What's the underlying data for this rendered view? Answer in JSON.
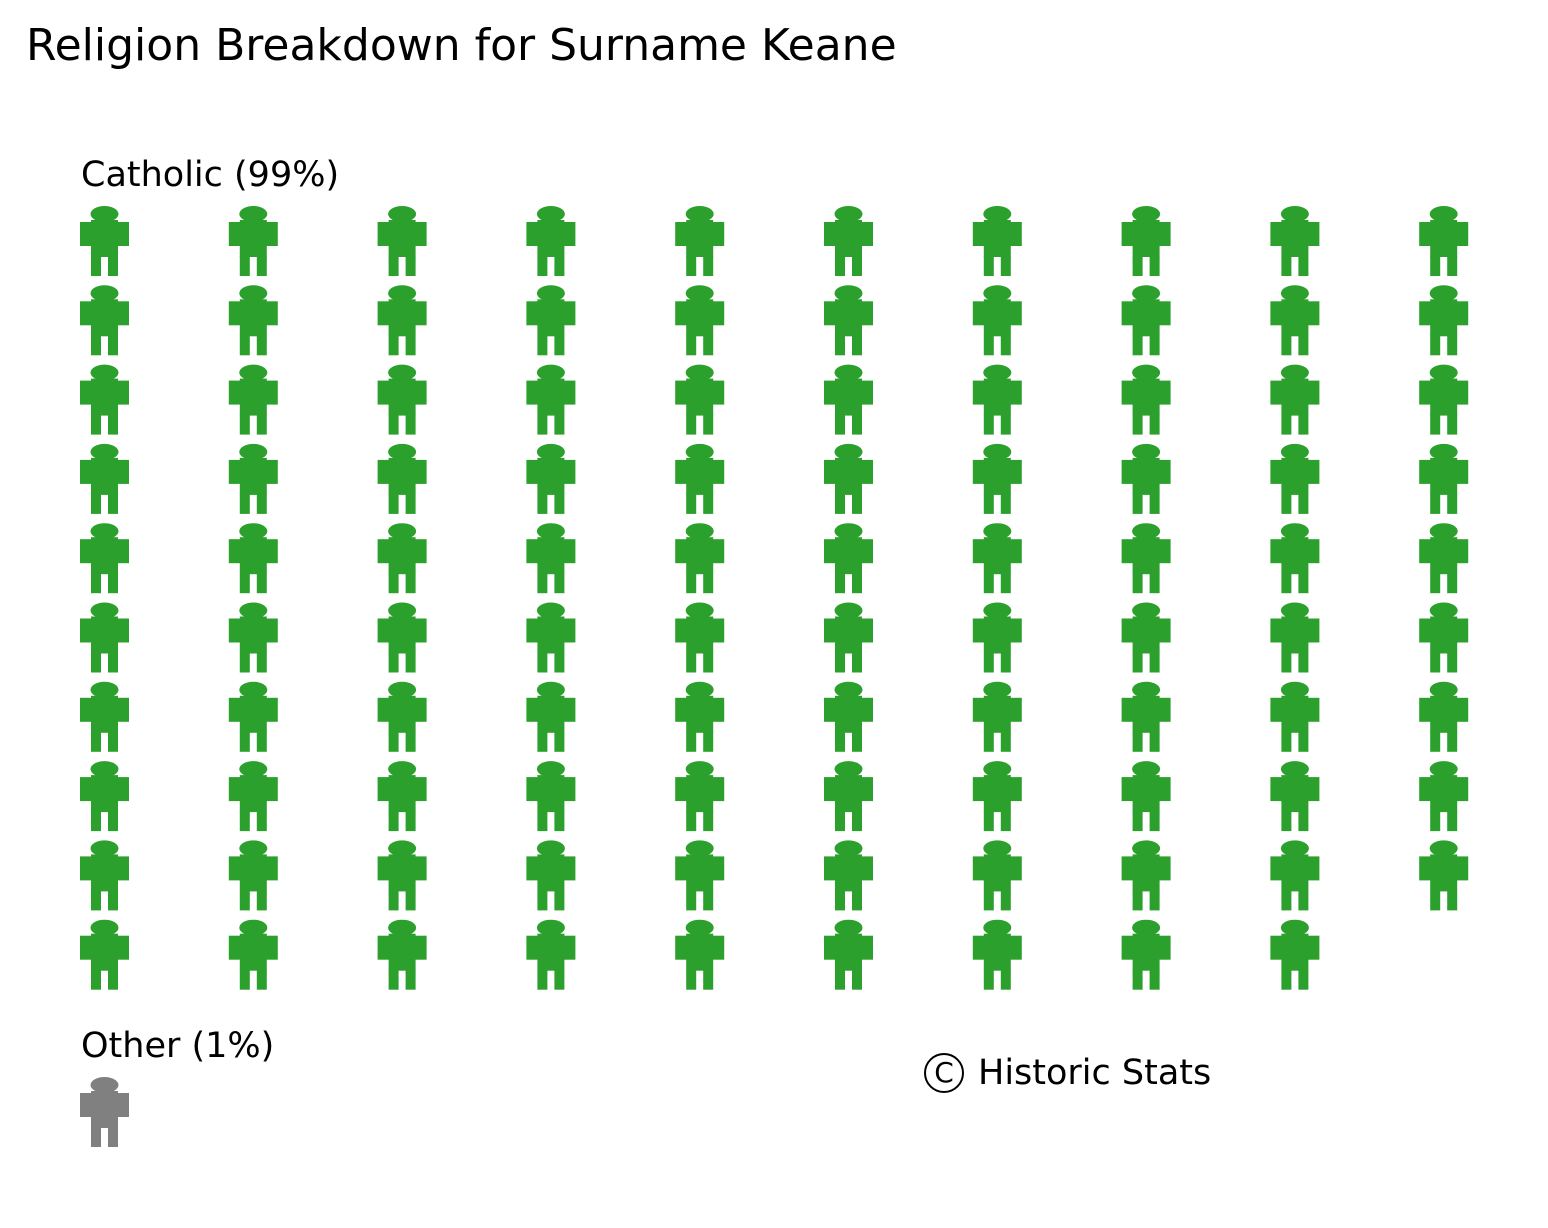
{
  "title": "Religion Breakdown for Surname Keane",
  "copyright": {
    "symbol": "C",
    "text": "Historic Stats"
  },
  "chart_data": {
    "type": "pictogram",
    "title": "Religion Breakdown for Surname Keane",
    "icon": "person-icon",
    "units_per_icon_percent": 1,
    "groups": [
      {
        "name": "Catholic",
        "label": "Catholic (99%)",
        "percent": 99,
        "icon_count": 99,
        "color": "#2ca02c"
      },
      {
        "name": "Other",
        "label": "Other (1%)",
        "percent": 1,
        "icon_count": 1,
        "color": "#808080"
      }
    ]
  }
}
